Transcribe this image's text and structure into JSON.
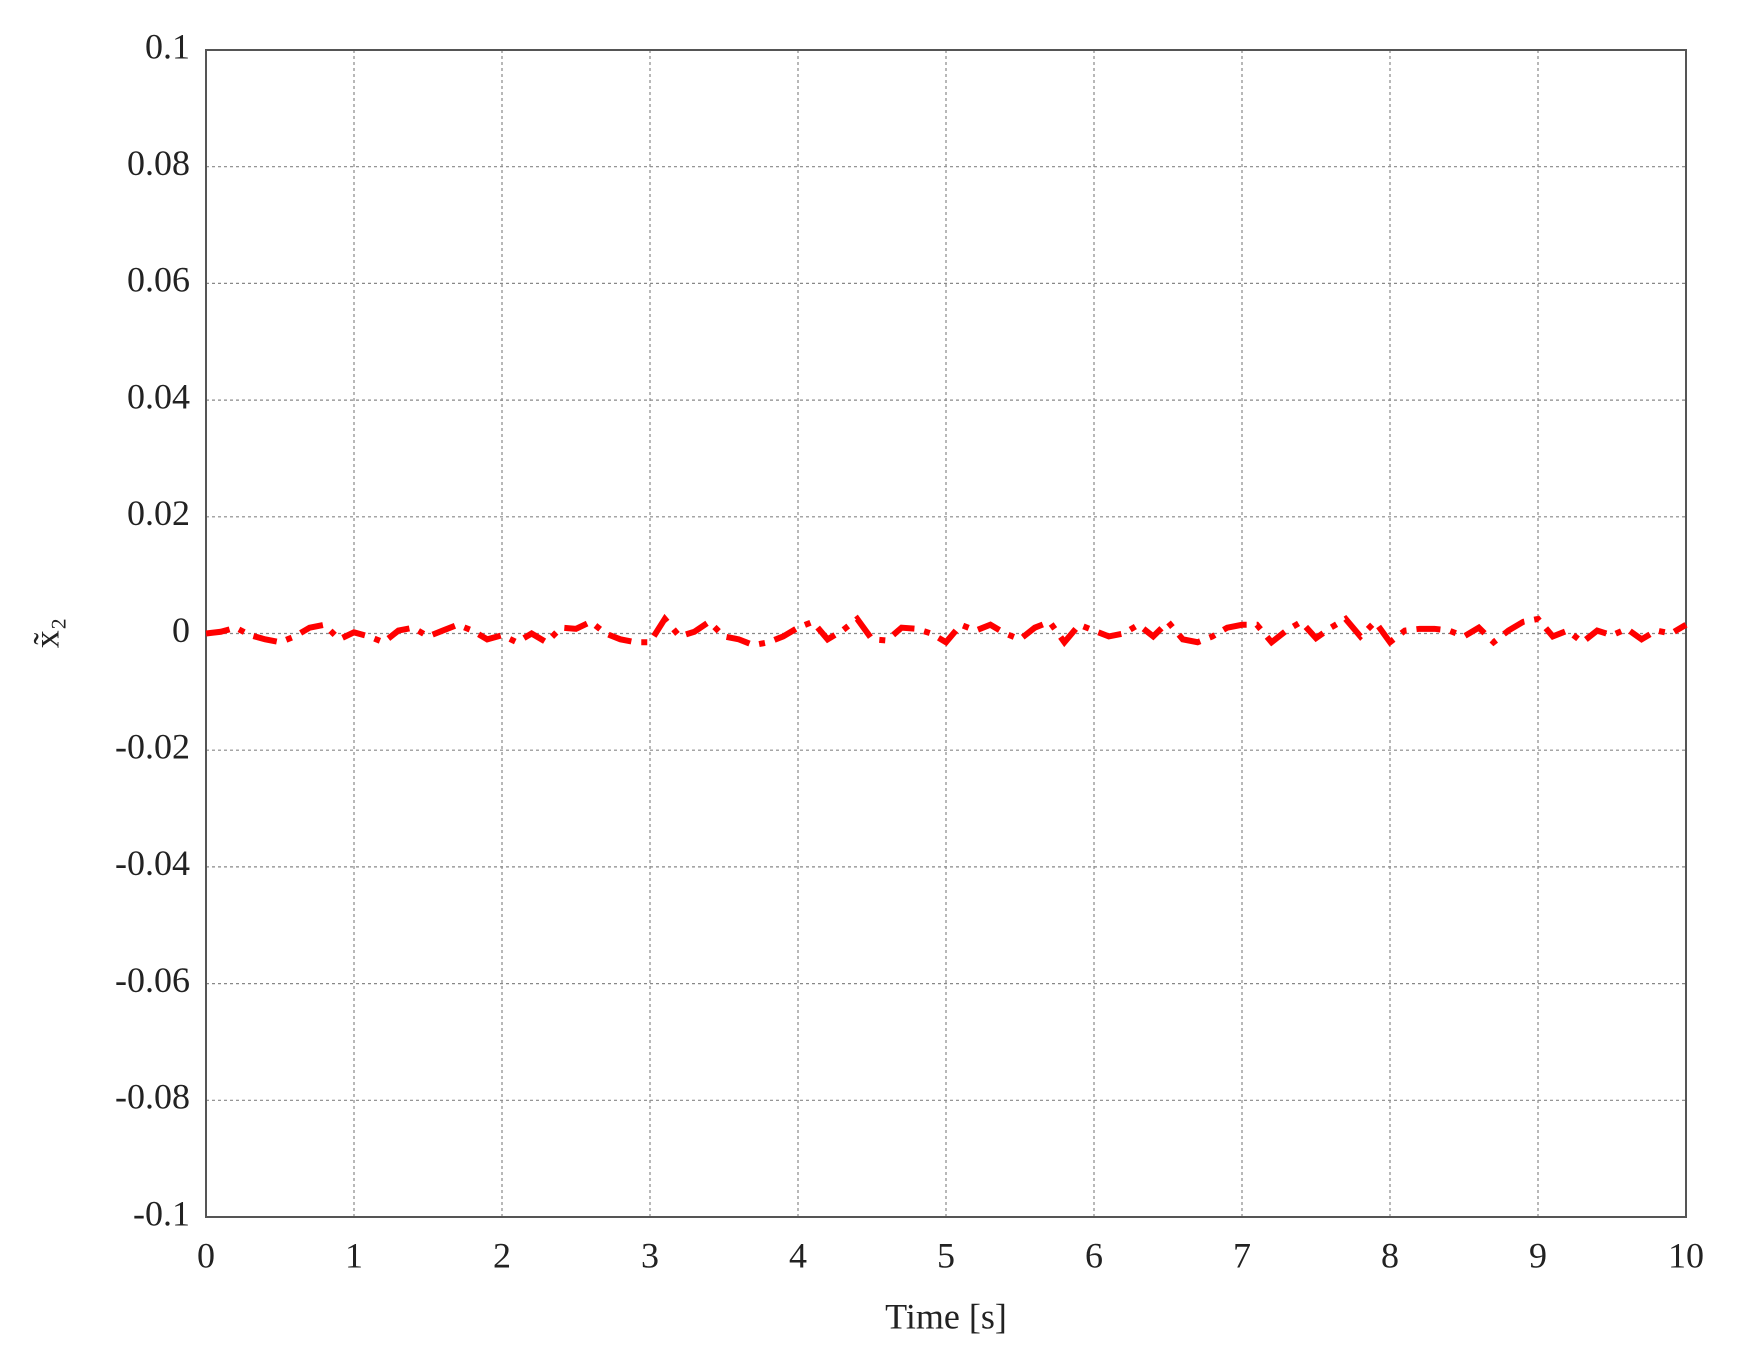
{
  "chart_data": {
    "type": "line",
    "xlabel": "Time [s]",
    "ylabel": "x̃₂",
    "x": [
      0,
      0.1,
      0.2,
      0.3,
      0.4,
      0.5,
      0.6,
      0.7,
      0.8,
      0.9,
      1.0,
      1.1,
      1.2,
      1.3,
      1.4,
      1.5,
      1.6,
      1.7,
      1.8,
      1.9,
      2.0,
      2.1,
      2.2,
      2.3,
      2.4,
      2.5,
      2.6,
      2.7,
      2.8,
      2.9,
      3.0,
      3.1,
      3.2,
      3.3,
      3.4,
      3.5,
      3.6,
      3.7,
      3.8,
      3.9,
      4.0,
      4.1,
      4.2,
      4.3,
      4.4,
      4.5,
      4.6,
      4.7,
      4.8,
      4.9,
      5.0,
      5.1,
      5.2,
      5.3,
      5.4,
      5.5,
      5.6,
      5.7,
      5.8,
      5.9,
      6.0,
      6.1,
      6.2,
      6.3,
      6.4,
      6.5,
      6.6,
      6.7,
      6.8,
      6.9,
      7.0,
      7.1,
      7.2,
      7.3,
      7.4,
      7.5,
      7.6,
      7.7,
      7.8,
      7.9,
      8.0,
      8.1,
      8.2,
      8.3,
      8.4,
      8.5,
      8.6,
      8.7,
      8.8,
      8.9,
      9.0,
      9.1,
      9.2,
      9.3,
      9.4,
      9.5,
      9.6,
      9.7,
      9.8,
      9.9,
      10
    ],
    "series": [
      {
        "color": "#ff0000",
        "values": [
          0,
          0.0003,
          0.001,
          -0.0003,
          -0.001,
          -0.0015,
          -0.0005,
          0.001,
          0.0015,
          -0.001,
          0.0002,
          -0.0005,
          -0.0015,
          0.0005,
          0.001,
          -0.0005,
          0.0005,
          0.0015,
          0.0005,
          -0.001,
          -0.0003,
          -0.0015,
          0,
          -0.0015,
          0.001,
          0.0008,
          0.002,
          0,
          -0.001,
          -0.0015,
          -0.0015,
          0.0025,
          -0.0005,
          0.0003,
          0.002,
          -0.0005,
          -0.001,
          -0.002,
          -0.0015,
          -0.0005,
          0.001,
          0.002,
          -0.001,
          0.0005,
          0.0025,
          -0.001,
          -0.0012,
          0.001,
          0.0008,
          0,
          -0.0015,
          0.0015,
          0.0005,
          0.0015,
          0,
          -0.001,
          0.001,
          0.002,
          -0.0015,
          0.0015,
          0.0005,
          -0.0005,
          0,
          0.0015,
          -0.0005,
          0.002,
          -0.001,
          -0.0015,
          -0.0005,
          0.001,
          0.0015,
          0.0015,
          -0.0015,
          0.0005,
          0.002,
          -0.0008,
          0.001,
          0.0025,
          -0.0005,
          0.002,
          -0.0015,
          0.0005,
          0.0008,
          0.0008,
          0.0005,
          -0.0005,
          0.001,
          -0.0015,
          0.0005,
          0.002,
          0.0025,
          -0.0005,
          0.0005,
          -0.0015,
          0.0005,
          -0.0003,
          0.0008,
          -0.001,
          0.0005,
          0,
          0.0015
        ]
      }
    ],
    "xlim": [
      0,
      10
    ],
    "xticks": [
      0,
      1,
      2,
      3,
      4,
      5,
      6,
      7,
      8,
      9,
      10
    ],
    "ylim": [
      -0.1,
      0.1
    ],
    "yticks": [
      -0.1,
      -0.08,
      -0.06,
      -0.04,
      -0.02,
      0,
      0.02,
      0.04,
      0.06,
      0.08,
      0.1
    ],
    "grid": true
  }
}
